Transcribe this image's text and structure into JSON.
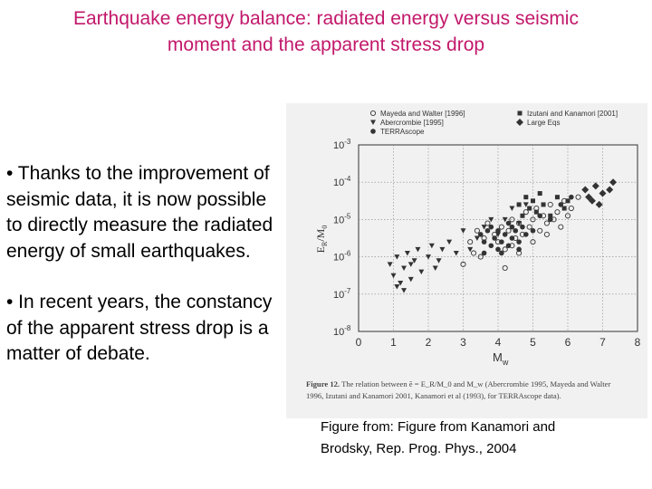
{
  "slide": {
    "title_line1": "Earthquake energy balance: radiated energy versus seismic",
    "title_line2": "moment and the apparent stress drop",
    "bullets": [
      "• Thanks to the improvement of seismic data, it is now possible to directly measure the radiated energy of small earthquakes.",
      "• In recent years, the constancy of the apparent stress drop is a matter of debate."
    ],
    "source_line1": "Figure from: Figure from Kanamori and",
    "source_line2": "Brodsky, Rep. Prog. Phys., 2004"
  },
  "colors": {
    "title": "#c2186b",
    "ink": "#333333",
    "figure_bg": "#f1f1f1"
  },
  "chart_data": {
    "type": "scatter",
    "xlabel_main": "M",
    "xlabel_sub": "w",
    "ylabel_main": "E",
    "ylabel_sub": "R",
    "ylabel_tail": "/M",
    "ylabel_tail_sub": "0",
    "xlim": [
      0,
      8
    ],
    "ylim_exp": [
      -8,
      -3
    ],
    "grid": true,
    "xticks": [
      "0",
      "1",
      "2",
      "3",
      "4",
      "5",
      "6",
      "7",
      "8"
    ],
    "yticks": [
      {
        "base": "10",
        "exp": "-3",
        "value": -3
      },
      {
        "base": "10",
        "exp": "-4",
        "value": -4
      },
      {
        "base": "10",
        "exp": "-5",
        "value": -5
      },
      {
        "base": "10",
        "exp": "-6",
        "value": -6
      },
      {
        "base": "10",
        "exp": "-7",
        "value": -7
      },
      {
        "base": "10",
        "exp": "-8",
        "value": -8
      }
    ],
    "legend": [
      {
        "label": "Mayeda and Walter [1996]",
        "marker": "open-circle"
      },
      {
        "label": "Abercrombie [1995]",
        "marker": "down-triangle"
      },
      {
        "label": "TERRAscope",
        "marker": "filled-circle"
      },
      {
        "label": "Izutani and Kanamori [2001]",
        "marker": "filled-square"
      },
      {
        "label": "Large Eqs",
        "marker": "filled-diamond"
      }
    ],
    "series": [
      {
        "name": "Mayeda and Walter [1996]",
        "marker": "open-circle",
        "points": [
          [
            3.2,
            -5.6
          ],
          [
            3.4,
            -5.3
          ],
          [
            3.6,
            -5.5
          ],
          [
            3.7,
            -5.1
          ],
          [
            3.9,
            -5.4
          ],
          [
            4.0,
            -5.6
          ],
          [
            4.1,
            -5.2
          ],
          [
            4.2,
            -5.8
          ],
          [
            4.3,
            -5.3
          ],
          [
            4.4,
            -5.0
          ],
          [
            4.5,
            -5.5
          ],
          [
            4.6,
            -5.1
          ],
          [
            4.7,
            -5.4
          ],
          [
            4.8,
            -4.8
          ],
          [
            4.9,
            -5.2
          ],
          [
            5.0,
            -5.0
          ],
          [
            5.1,
            -4.7
          ],
          [
            5.2,
            -5.3
          ],
          [
            5.3,
            -4.9
          ],
          [
            5.4,
            -5.1
          ],
          [
            5.5,
            -4.6
          ],
          [
            5.6,
            -5.0
          ],
          [
            5.7,
            -4.8
          ],
          [
            5.8,
            -5.2
          ],
          [
            5.9,
            -4.5
          ],
          [
            6.0,
            -4.9
          ],
          [
            6.1,
            -4.7
          ],
          [
            6.3,
            -4.4
          ],
          [
            3.0,
            -6.2
          ],
          [
            3.5,
            -6.0
          ],
          [
            4.2,
            -6.3
          ],
          [
            4.6,
            -5.9
          ],
          [
            5.0,
            -5.6
          ],
          [
            5.4,
            -5.4
          ],
          [
            3.3,
            -5.9
          ],
          [
            4.4,
            -5.7
          ]
        ]
      },
      {
        "name": "Abercrombie [1995]",
        "marker": "down-triangle",
        "points": [
          [
            0.9,
            -6.2
          ],
          [
            1.0,
            -6.5
          ],
          [
            1.1,
            -6.0
          ],
          [
            1.2,
            -6.7
          ],
          [
            1.3,
            -6.3
          ],
          [
            1.4,
            -5.9
          ],
          [
            1.5,
            -6.6
          ],
          [
            1.6,
            -6.1
          ],
          [
            1.7,
            -5.8
          ],
          [
            1.8,
            -6.4
          ],
          [
            1.1,
            -6.8
          ],
          [
            1.3,
            -6.9
          ],
          [
            2.0,
            -6.0
          ],
          [
            2.1,
            -5.7
          ],
          [
            2.2,
            -6.3
          ],
          [
            2.4,
            -5.8
          ],
          [
            2.6,
            -5.6
          ],
          [
            2.8,
            -5.9
          ],
          [
            3.0,
            -5.3
          ],
          [
            3.2,
            -5.8
          ],
          [
            3.4,
            -5.5
          ],
          [
            3.6,
            -5.2
          ],
          [
            3.8,
            -5.0
          ],
          [
            4.0,
            -5.4
          ],
          [
            4.2,
            -5.0
          ],
          [
            4.4,
            -4.7
          ],
          [
            4.6,
            -5.1
          ],
          [
            4.8,
            -4.6
          ],
          [
            1.5,
            -6.2
          ],
          [
            2.3,
            -6.1
          ]
        ]
      },
      {
        "name": "TERRAscope",
        "marker": "filled-circle",
        "points": [
          [
            3.5,
            -5.4
          ],
          [
            3.6,
            -5.6
          ],
          [
            3.7,
            -5.3
          ],
          [
            3.8,
            -5.7
          ],
          [
            3.9,
            -5.5
          ],
          [
            4.0,
            -5.3
          ],
          [
            4.1,
            -5.6
          ],
          [
            4.2,
            -5.4
          ],
          [
            4.3,
            -5.7
          ],
          [
            4.4,
            -5.5
          ],
          [
            4.5,
            -5.3
          ],
          [
            4.6,
            -5.6
          ],
          [
            4.7,
            -5.2
          ],
          [
            3.8,
            -5.2
          ],
          [
            4.1,
            -5.9
          ],
          [
            4.4,
            -5.2
          ],
          [
            4.0,
            -5.8
          ],
          [
            4.3,
            -5.1
          ],
          [
            4.8,
            -5.4
          ],
          [
            5.0,
            -5.3
          ],
          [
            5.2,
            -4.9
          ],
          [
            5.5,
            -5.0
          ],
          [
            5.8,
            -4.6
          ],
          [
            6.1,
            -4.4
          ],
          [
            3.6,
            -5.9
          ],
          [
            4.6,
            -5.8
          ]
        ]
      },
      {
        "name": "Izutani and Kanamori [2001]",
        "marker": "filled-square",
        "points": [
          [
            4.6,
            -4.6
          ],
          [
            4.7,
            -4.9
          ],
          [
            4.8,
            -4.4
          ],
          [
            4.9,
            -4.7
          ],
          [
            5.0,
            -4.5
          ],
          [
            5.1,
            -4.8
          ],
          [
            5.2,
            -4.3
          ],
          [
            5.3,
            -4.6
          ],
          [
            5.5,
            -4.9
          ],
          [
            5.7,
            -4.4
          ],
          [
            5.9,
            -4.7
          ],
          [
            6.0,
            -4.5
          ]
        ]
      },
      {
        "name": "Large Eqs",
        "marker": "filled-diamond",
        "points": [
          [
            6.5,
            -4.2
          ],
          [
            6.7,
            -4.5
          ],
          [
            6.8,
            -4.1
          ],
          [
            7.0,
            -4.3
          ],
          [
            7.2,
            -4.2
          ],
          [
            7.3,
            -4.0
          ],
          [
            6.9,
            -4.6
          ],
          [
            6.6,
            -4.4
          ]
        ]
      }
    ],
    "caption_bold": "Figure 12.",
    "caption_text": "The relation between ẽ = E_R/M_0 and M_w (Abercrombie 1995, Mayeda and Walter 1996, Izutani and Kanamori 2001, Kanamori et al (1993), for TERRAscope data)."
  }
}
